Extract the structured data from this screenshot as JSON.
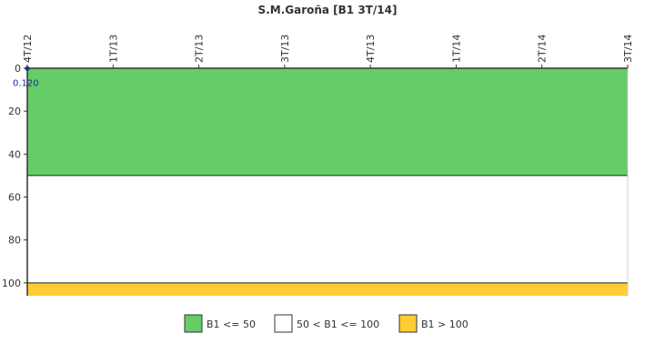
{
  "chart_data": {
    "type": "line",
    "title": "S.M.Garoña [B1 3T/14]",
    "x_categories": [
      "4T/12",
      "1T/13",
      "2T/13",
      "3T/13",
      "4T/13",
      "1T/14",
      "2T/14",
      "3T/14"
    ],
    "y_ticks": [
      0,
      20,
      40,
      60,
      80,
      100
    ],
    "ylim": [
      0,
      106
    ],
    "y_inverted": true,
    "series": [
      {
        "values": [
          0.12
        ],
        "color": "#1a2e9a"
      }
    ],
    "data_labels": [
      "0.120"
    ],
    "bands": [
      {
        "from": 0,
        "to": 50,
        "color": "#66cc66",
        "label": "B1 <= 50"
      },
      {
        "from": 50,
        "to": 100,
        "color": "#ffffff",
        "label": "50 < B1 <= 100"
      },
      {
        "from": 100,
        "to": 106,
        "color": "#ffcc33",
        "label": "B1 > 100"
      }
    ],
    "legend_position": "bottom"
  }
}
